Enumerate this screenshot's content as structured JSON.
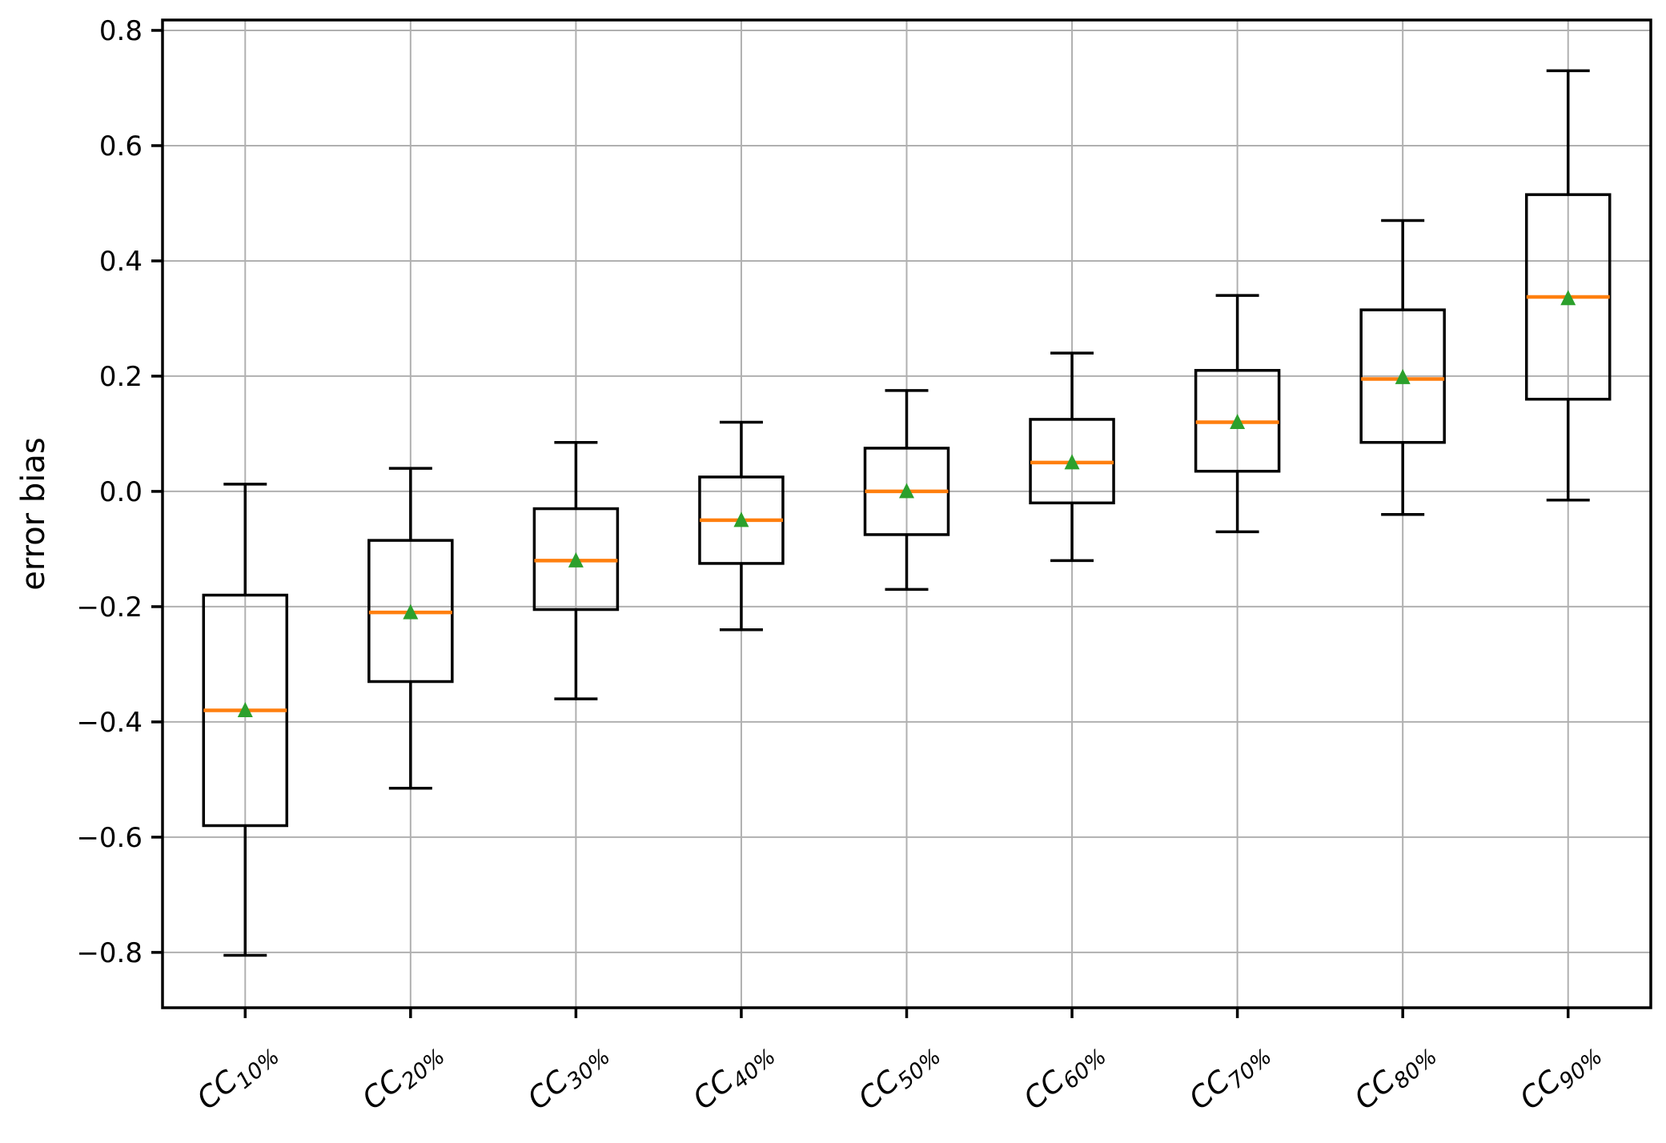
{
  "chart_data": {
    "type": "boxplot",
    "title": "",
    "xlabel": "",
    "ylabel": "error bias",
    "ylim": [
      -0.896,
      0.818
    ],
    "yticks": [
      0.8,
      0.6,
      0.4,
      0.2,
      0.0,
      -0.2,
      -0.4,
      -0.6,
      -0.8
    ],
    "ytick_labels": [
      "0.8",
      "0.6",
      "0.4",
      "0.2",
      "0.0",
      "−0.2",
      "−0.4",
      "−0.6",
      "−0.8"
    ],
    "grid": true,
    "legend": "none",
    "categories": [
      {
        "label": "CC10%",
        "prefix": "CC",
        "subscript": "10%"
      },
      {
        "label": "CC20%",
        "prefix": "CC",
        "subscript": "20%"
      },
      {
        "label": "CC30%",
        "prefix": "CC",
        "subscript": "30%"
      },
      {
        "label": "CC40%",
        "prefix": "CC",
        "subscript": "40%"
      },
      {
        "label": "CC50%",
        "prefix": "CC",
        "subscript": "50%"
      },
      {
        "label": "CC60%",
        "prefix": "CC",
        "subscript": "60%"
      },
      {
        "label": "CC70%",
        "prefix": "CC",
        "subscript": "70%"
      },
      {
        "label": "CC80%",
        "prefix": "CC",
        "subscript": "80%"
      },
      {
        "label": "CC90%",
        "prefix": "CC",
        "subscript": "90%"
      }
    ],
    "series": [
      {
        "label": "CC10%",
        "whislo": -0.805,
        "q1": -0.58,
        "med": -0.38,
        "mean": -0.38,
        "q3": -0.18,
        "whishi": 0.0125
      },
      {
        "label": "CC20%",
        "whislo": -0.515,
        "q1": -0.33,
        "med": -0.21,
        "mean": -0.21,
        "q3": -0.085,
        "whishi": 0.04
      },
      {
        "label": "CC30%",
        "whislo": -0.36,
        "q1": -0.205,
        "med": -0.12,
        "mean": -0.12,
        "q3": -0.03,
        "whishi": 0.085
      },
      {
        "label": "CC40%",
        "whislo": -0.24,
        "q1": -0.125,
        "med": -0.05,
        "mean": -0.05,
        "q3": 0.025,
        "whishi": 0.12
      },
      {
        "label": "CC50%",
        "whislo": -0.17,
        "q1": -0.075,
        "med": 0.0,
        "mean": 0.0,
        "q3": 0.075,
        "whishi": 0.175
      },
      {
        "label": "CC60%",
        "whislo": -0.12,
        "q1": -0.02,
        "med": 0.05,
        "mean": 0.05,
        "q3": 0.125,
        "whishi": 0.24
      },
      {
        "label": "CC70%",
        "whislo": -0.07,
        "q1": 0.035,
        "med": 0.12,
        "mean": 0.12,
        "q3": 0.21,
        "whishi": 0.34
      },
      {
        "label": "CC80%",
        "whislo": -0.04,
        "q1": 0.085,
        "med": 0.195,
        "mean": 0.198,
        "q3": 0.315,
        "whishi": 0.47
      },
      {
        "label": "CC90%",
        "whislo": -0.015,
        "q1": 0.16,
        "med": 0.3375,
        "mean": 0.335,
        "q3": 0.515,
        "whishi": 0.73
      }
    ],
    "colors": {
      "box_line": "#000000",
      "whisker_line": "#000000",
      "median_line": "#ff7f0e",
      "mean_marker": "#2ca02c",
      "grid_line": "#b0b0b0",
      "spine": "#000000",
      "background": "#ffffff"
    },
    "mean_marker_shape": "triangle-up"
  }
}
